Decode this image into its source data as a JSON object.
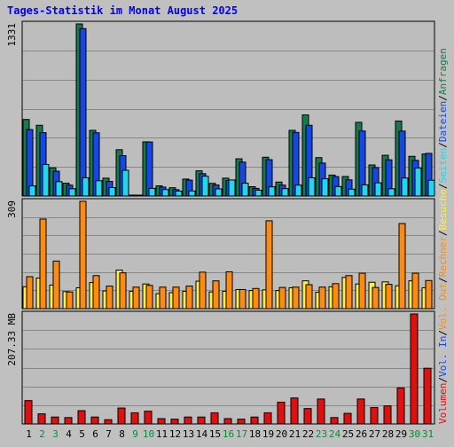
{
  "title": "Tages-Statistik im Monat August 2025",
  "colors": {
    "background": "#c0c0c0",
    "title": "#0000ff",
    "panel": "#bdbdbd",
    "grid": "#888888",
    "anfragen": "#187a4a",
    "dateien": "#1448e6",
    "seiten": "#22d6f0",
    "besuche": "#ffee44",
    "rechner": "#ff8a10",
    "vol_out": "#ff8a10",
    "vol_in": "#1448e6",
    "volumen": "#e01010",
    "weekday_label": "#000000",
    "weekend_label": "#0a8a3a"
  },
  "chart_data": [
    {
      "type": "bar",
      "title": "Tages-Statistik im Monat August 2025",
      "categories": [
        "1",
        "2",
        "3",
        "4",
        "5",
        "6",
        "7",
        "8",
        "9",
        "10",
        "11",
        "12",
        "13",
        "14",
        "15",
        "16",
        "17",
        "18",
        "19",
        "20",
        "21",
        "22",
        "23",
        "24",
        "25",
        "26",
        "27",
        "28",
        "29",
        "30",
        "31"
      ],
      "weekend_days": [
        "2",
        "3",
        "9",
        "10",
        "16",
        "17",
        "23",
        "24",
        "30",
        "31"
      ],
      "ymax_label": "1331",
      "ylim": [
        0,
        1331
      ],
      "series": [
        {
          "name": "Anfragen",
          "values": [
            592,
            547,
            218,
            99,
            1331,
            508,
            138,
            358,
            7,
            419,
            79,
            64,
            131,
            195,
            98,
            138,
            288,
            72,
            300,
            108,
            508,
            627,
            297,
            162,
            151,
            570,
            240,
            315,
            580,
            307,
            325
          ]
        },
        {
          "name": "Dateien",
          "values": [
            514,
            490,
            192,
            84,
            1295,
            489,
            113,
            312,
            7,
            418,
            69,
            49,
            123,
            173,
            85,
            120,
            262,
            59,
            281,
            84,
            492,
            547,
            255,
            150,
            125,
            503,
            220,
            280,
            502,
            276,
            330
          ]
        },
        {
          "name": "Seiten",
          "values": [
            78,
            244,
            111,
            56,
            141,
            118,
            65,
            199,
            5,
            59,
            50,
            38,
            39,
            153,
            55,
            124,
            99,
            45,
            71,
            57,
            84,
            141,
            133,
            73,
            53,
            86,
            102,
            56,
            139,
            216,
            122
          ]
        }
      ]
    },
    {
      "type": "bar",
      "categories": [
        "1",
        "2",
        "3",
        "4",
        "5",
        "6",
        "7",
        "8",
        "9",
        "10",
        "11",
        "12",
        "13",
        "14",
        "15",
        "16",
        "17",
        "18",
        "19",
        "20",
        "21",
        "22",
        "23",
        "24",
        "25",
        "26",
        "27",
        "28",
        "29",
        "30",
        "31"
      ],
      "ymax_label": "309",
      "ylim": [
        0,
        309
      ],
      "series": [
        {
          "name": "Besuche",
          "values": [
            63,
            88,
            68,
            49,
            60,
            75,
            51,
            111,
            50,
            71,
            43,
            46,
            50,
            79,
            48,
            50,
            55,
            52,
            54,
            52,
            60,
            80,
            47,
            63,
            90,
            71,
            76,
            77,
            66,
            80,
            60
          ]
        },
        {
          "name": "Rechner",
          "values": [
            92,
            258,
            137,
            48,
            309,
            95,
            65,
            103,
            62,
            67,
            62,
            62,
            65,
            105,
            80,
            106,
            55,
            58,
            253,
            61,
            62,
            69,
            62,
            72,
            95,
            102,
            61,
            70,
            245,
            102,
            81
          ]
        }
      ]
    },
    {
      "type": "bar",
      "categories": [
        "1",
        "2",
        "3",
        "4",
        "5",
        "6",
        "7",
        "8",
        "9",
        "10",
        "11",
        "12",
        "13",
        "14",
        "15",
        "16",
        "17",
        "18",
        "19",
        "20",
        "21",
        "22",
        "23",
        "24",
        "25",
        "26",
        "27",
        "28",
        "29",
        "30",
        "31"
      ],
      "ymax_label": "207.33 MB",
      "ylim": [
        0,
        207.33
      ],
      "series": [
        {
          "name": "Volumen",
          "values": [
            44,
            19,
            13,
            12,
            25,
            13,
            8,
            30,
            21,
            24,
            10,
            9,
            13,
            13,
            21,
            10,
            9,
            13,
            21,
            41,
            49,
            29,
            47,
            12,
            20,
            47,
            31,
            34,
            68,
            207.33,
            105
          ]
        }
      ]
    }
  ],
  "legend": [
    {
      "label": "Volumen",
      "color_key": "volumen"
    },
    {
      "label": "Vol. In",
      "color_key": "vol_in"
    },
    {
      "label": "Vol. Out",
      "color_key": "vol_out"
    },
    {
      "label": "Rechner",
      "color_key": "rechner"
    },
    {
      "label": "Besuche",
      "color_key": "besuche"
    },
    {
      "label": "Seiten",
      "color_key": "seiten"
    },
    {
      "label": "Dateien",
      "color_key": "dateien"
    },
    {
      "label": "Anfragen",
      "color_key": "anfragen"
    }
  ],
  "separator": "/"
}
